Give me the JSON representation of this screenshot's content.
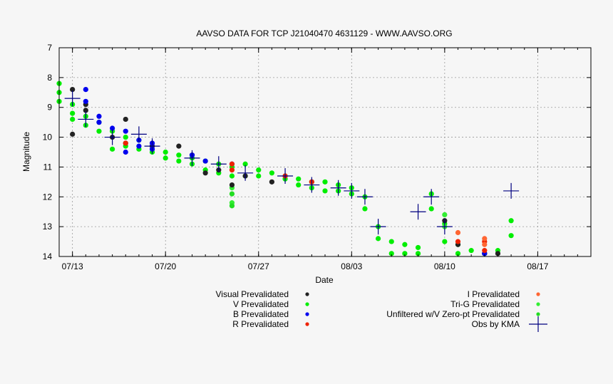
{
  "chart_data": {
    "type": "scatter",
    "title": "AAVSO DATA FOR TCP J21040470 4631129 - WWW.AAVSO.ORG",
    "xlabel": "Date",
    "ylabel": "Magnitude",
    "x_unit": "date (2019)",
    "xlim": [
      "2019-07-12",
      "2019-08-21"
    ],
    "ylim": [
      7,
      14
    ],
    "y_inverted": true,
    "grid": true,
    "x_ticks": [
      {
        "date": "2019-07-13",
        "label": "07/13"
      },
      {
        "date": "2019-07-20",
        "label": "07/20"
      },
      {
        "date": "2019-07-27",
        "label": "07/27"
      },
      {
        "date": "2019-08-03",
        "label": "08/03"
      },
      {
        "date": "2019-08-10",
        "label": "08/10"
      },
      {
        "date": "2019-08-17",
        "label": "08/17"
      }
    ],
    "y_ticks": [
      "7",
      "8",
      "9",
      "10",
      "11",
      "12",
      "13",
      "14"
    ],
    "legend_placement": "bottom",
    "series": [
      {
        "name": "Visual Prevalidated",
        "color": "#222222",
        "marker": "dot",
        "points": [
          [
            "2019-07-13",
            8.4
          ],
          [
            "2019-07-13",
            9.9
          ],
          [
            "2019-07-14",
            8.9
          ],
          [
            "2019-07-14",
            9.1
          ],
          [
            "2019-07-16",
            10.0
          ],
          [
            "2019-07-17",
            9.4
          ],
          [
            "2019-07-17",
            10.2
          ],
          [
            "2019-07-19",
            10.3
          ],
          [
            "2019-07-21",
            10.3
          ],
          [
            "2019-07-22",
            10.6
          ],
          [
            "2019-07-23",
            11.2
          ],
          [
            "2019-07-24",
            11.1
          ],
          [
            "2019-07-25",
            11.6
          ],
          [
            "2019-07-26",
            11.3
          ],
          [
            "2019-07-28",
            11.5
          ],
          [
            "2019-08-10",
            12.8
          ],
          [
            "2019-08-11",
            13.6
          ],
          [
            "2019-08-13",
            13.9
          ],
          [
            "2019-08-14",
            13.9
          ]
        ]
      },
      {
        "name": "V Prevalidated",
        "color": "#00ee00",
        "marker": "dot",
        "points": [
          [
            "2019-07-12",
            8.2
          ],
          [
            "2019-07-12",
            8.5
          ],
          [
            "2019-07-12",
            8.8
          ],
          [
            "2019-07-13",
            8.9
          ],
          [
            "2019-07-13",
            9.2
          ],
          [
            "2019-07-13",
            9.4
          ],
          [
            "2019-07-14",
            9.3
          ],
          [
            "2019-07-14",
            9.6
          ],
          [
            "2019-07-15",
            9.5
          ],
          [
            "2019-07-15",
            9.8
          ],
          [
            "2019-07-16",
            9.8
          ],
          [
            "2019-07-16",
            10.4
          ],
          [
            "2019-07-17",
            10.0
          ],
          [
            "2019-07-17",
            10.3
          ],
          [
            "2019-07-18",
            10.1
          ],
          [
            "2019-07-18",
            10.4
          ],
          [
            "2019-07-19",
            10.3
          ],
          [
            "2019-07-19",
            10.5
          ],
          [
            "2019-07-20",
            10.5
          ],
          [
            "2019-07-20",
            10.7
          ],
          [
            "2019-07-21",
            10.6
          ],
          [
            "2019-07-21",
            10.8
          ],
          [
            "2019-07-22",
            10.7
          ],
          [
            "2019-07-22",
            10.9
          ],
          [
            "2019-07-23",
            10.8
          ],
          [
            "2019-07-23",
            11.1
          ],
          [
            "2019-07-24",
            10.9
          ],
          [
            "2019-07-24",
            11.2
          ],
          [
            "2019-07-25",
            11.0
          ],
          [
            "2019-07-25",
            11.3
          ],
          [
            "2019-07-26",
            10.9
          ],
          [
            "2019-07-26",
            11.3
          ],
          [
            "2019-07-27",
            11.1
          ],
          [
            "2019-07-27",
            11.3
          ],
          [
            "2019-07-28",
            11.2
          ],
          [
            "2019-07-29",
            11.3
          ],
          [
            "2019-07-29",
            11.4
          ],
          [
            "2019-07-30",
            11.4
          ],
          [
            "2019-07-30",
            11.6
          ],
          [
            "2019-07-31",
            11.5
          ],
          [
            "2019-07-31",
            11.7
          ],
          [
            "2019-08-01",
            11.5
          ],
          [
            "2019-08-01",
            11.8
          ],
          [
            "2019-08-02",
            11.6
          ],
          [
            "2019-08-02",
            11.8
          ],
          [
            "2019-08-03",
            11.7
          ],
          [
            "2019-08-03",
            11.9
          ],
          [
            "2019-08-04",
            12.0
          ],
          [
            "2019-08-04",
            12.4
          ],
          [
            "2019-08-05",
            13.0
          ],
          [
            "2019-08-05",
            13.4
          ],
          [
            "2019-08-06",
            13.5
          ],
          [
            "2019-08-06",
            13.9
          ],
          [
            "2019-08-07",
            13.6
          ],
          [
            "2019-08-07",
            13.9
          ],
          [
            "2019-08-08",
            13.7
          ],
          [
            "2019-08-08",
            13.9
          ],
          [
            "2019-08-09",
            11.9
          ],
          [
            "2019-08-09",
            12.4
          ],
          [
            "2019-08-10",
            12.9
          ],
          [
            "2019-08-10",
            13.5
          ],
          [
            "2019-08-11",
            13.6
          ],
          [
            "2019-08-11",
            13.9
          ],
          [
            "2019-08-12",
            13.8
          ],
          [
            "2019-08-13",
            13.9
          ],
          [
            "2019-08-14",
            13.8
          ],
          [
            "2019-08-15",
            12.8
          ],
          [
            "2019-08-15",
            13.3
          ]
        ]
      },
      {
        "name": "B Prevalidated",
        "color": "#0000ee",
        "marker": "dot",
        "points": [
          [
            "2019-07-14",
            8.4
          ],
          [
            "2019-07-14",
            8.8
          ],
          [
            "2019-07-15",
            9.3
          ],
          [
            "2019-07-15",
            9.5
          ],
          [
            "2019-07-16",
            9.7
          ],
          [
            "2019-07-17",
            9.8
          ],
          [
            "2019-07-17",
            10.5
          ],
          [
            "2019-07-18",
            10.1
          ],
          [
            "2019-07-18",
            10.3
          ],
          [
            "2019-07-19",
            10.2
          ],
          [
            "2019-07-19",
            10.4
          ],
          [
            "2019-07-22",
            10.6
          ],
          [
            "2019-07-23",
            10.8
          ],
          [
            "2019-07-25",
            10.9
          ],
          [
            "2019-08-13",
            13.9
          ]
        ]
      },
      {
        "name": "R Prevalidated",
        "color": "#ee2200",
        "marker": "dot",
        "points": [
          [
            "2019-07-17",
            10.2
          ],
          [
            "2019-07-25",
            10.9
          ],
          [
            "2019-07-25",
            11.1
          ],
          [
            "2019-07-29",
            11.3
          ],
          [
            "2019-07-31",
            11.5
          ],
          [
            "2019-08-11",
            13.5
          ],
          [
            "2019-08-13",
            13.5
          ],
          [
            "2019-08-13",
            13.8
          ]
        ]
      },
      {
        "name": "I Prevalidated",
        "color": "#ff6633",
        "marker": "dot",
        "points": [
          [
            "2019-08-11",
            13.2
          ],
          [
            "2019-08-13",
            13.4
          ],
          [
            "2019-08-13",
            13.6
          ]
        ]
      },
      {
        "name": "Tri-G Prevalidated",
        "color": "#33ee33",
        "marker": "dot",
        "points": [
          [
            "2019-07-25",
            11.7
          ],
          [
            "2019-07-25",
            12.2
          ],
          [
            "2019-08-10",
            12.6
          ],
          [
            "2019-08-10",
            13.0
          ]
        ]
      },
      {
        "name": "Unfiltered w/V Zero-pt Prevalidated",
        "color": "#22dd22",
        "marker": "dot",
        "points": [
          [
            "2019-07-25",
            11.9
          ],
          [
            "2019-07-25",
            12.3
          ]
        ]
      },
      {
        "name": "Obs by KMA",
        "color": "#000080",
        "marker": "cross",
        "points": [
          [
            "2019-07-13",
            8.7
          ],
          [
            "2019-07-14",
            9.4
          ],
          [
            "2019-07-16",
            10.0
          ],
          [
            "2019-07-18",
            9.9
          ],
          [
            "2019-07-19",
            10.3
          ],
          [
            "2019-07-22",
            10.7
          ],
          [
            "2019-07-24",
            10.9
          ],
          [
            "2019-07-26",
            11.2
          ],
          [
            "2019-07-29",
            11.3
          ],
          [
            "2019-07-31",
            11.6
          ],
          [
            "2019-08-02",
            11.7
          ],
          [
            "2019-08-03",
            11.8
          ],
          [
            "2019-08-04",
            12.0
          ],
          [
            "2019-08-05",
            13.0
          ],
          [
            "2019-08-08",
            12.5
          ],
          [
            "2019-08-09",
            12.0
          ],
          [
            "2019-08-10",
            13.0
          ],
          [
            "2019-08-15",
            11.8
          ]
        ]
      }
    ]
  }
}
